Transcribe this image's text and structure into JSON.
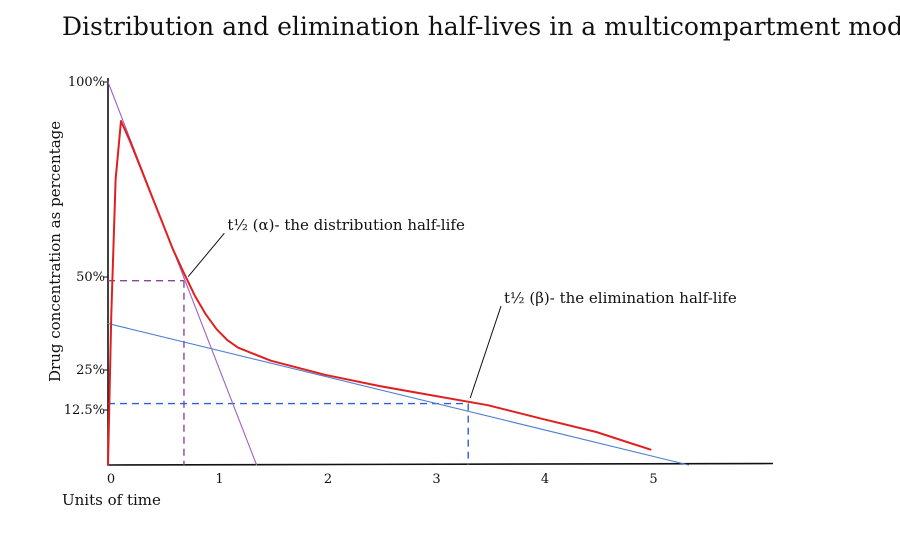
{
  "chart_data": {
    "type": "line",
    "title": "Distribution and elimination half-lives in a multicompartment model",
    "xlabel": "Units of time",
    "ylabel": "Drug concentration as percentage",
    "x_ticks": [
      0,
      1,
      2,
      3,
      4,
      5
    ],
    "y_ticks": [
      {
        "value": 12.5,
        "label": "12.5%"
      },
      {
        "value": 25,
        "label": "25%"
      },
      {
        "value": 50,
        "label": "50%"
      },
      {
        "value": 100,
        "label": "100%"
      }
    ],
    "xlim": [
      0,
      6
    ],
    "ylim": [
      0,
      100
    ],
    "grid": false,
    "series": [
      {
        "role": "concentration-curve",
        "color": "#e02020",
        "points": [
          [
            0,
            0
          ],
          [
            0.03,
            40
          ],
          [
            0.07,
            75
          ],
          [
            0.12,
            90
          ],
          [
            0.2,
            85
          ],
          [
            0.3,
            78
          ],
          [
            0.4,
            71
          ],
          [
            0.5,
            64
          ],
          [
            0.6,
            57
          ],
          [
            0.7,
            51
          ],
          [
            0.8,
            45
          ],
          [
            0.9,
            40
          ],
          [
            1.0,
            36
          ],
          [
            1.1,
            33
          ],
          [
            1.2,
            31
          ],
          [
            1.5,
            27.5
          ],
          [
            2.0,
            23.5
          ],
          [
            2.5,
            20
          ],
          [
            3.0,
            17
          ],
          [
            3.5,
            14
          ],
          [
            4.0,
            10.5
          ],
          [
            4.5,
            7.5
          ],
          [
            5.0,
            3.5
          ]
        ]
      },
      {
        "role": "distribution-tangent",
        "color": "#a060c0",
        "points": [
          [
            0,
            100
          ],
          [
            1.37,
            0
          ]
        ]
      },
      {
        "role": "elimination-tangent",
        "color": "#5080d0",
        "points": [
          [
            0,
            37.5
          ],
          [
            5.35,
            0
          ]
        ]
      }
    ],
    "reference_lines": [
      {
        "role": "alpha-half-life",
        "color": "#9040a0",
        "y": 49,
        "x": 0.7
      },
      {
        "role": "beta-half-life",
        "color": "#3060d0",
        "y": 14.5,
        "x": 3.32
      }
    ],
    "annotations": [
      {
        "role": "alpha-annotation",
        "text": "t½ (α)- the distribution half-life",
        "target": [
          0.72,
          49
        ],
        "text_at": [
          1.1,
          62
        ]
      },
      {
        "role": "beta-annotation",
        "text": "t½ (β)- the elimination half-life",
        "target": [
          3.32,
          15
        ],
        "text_at": [
          3.65,
          43
        ]
      }
    ]
  }
}
